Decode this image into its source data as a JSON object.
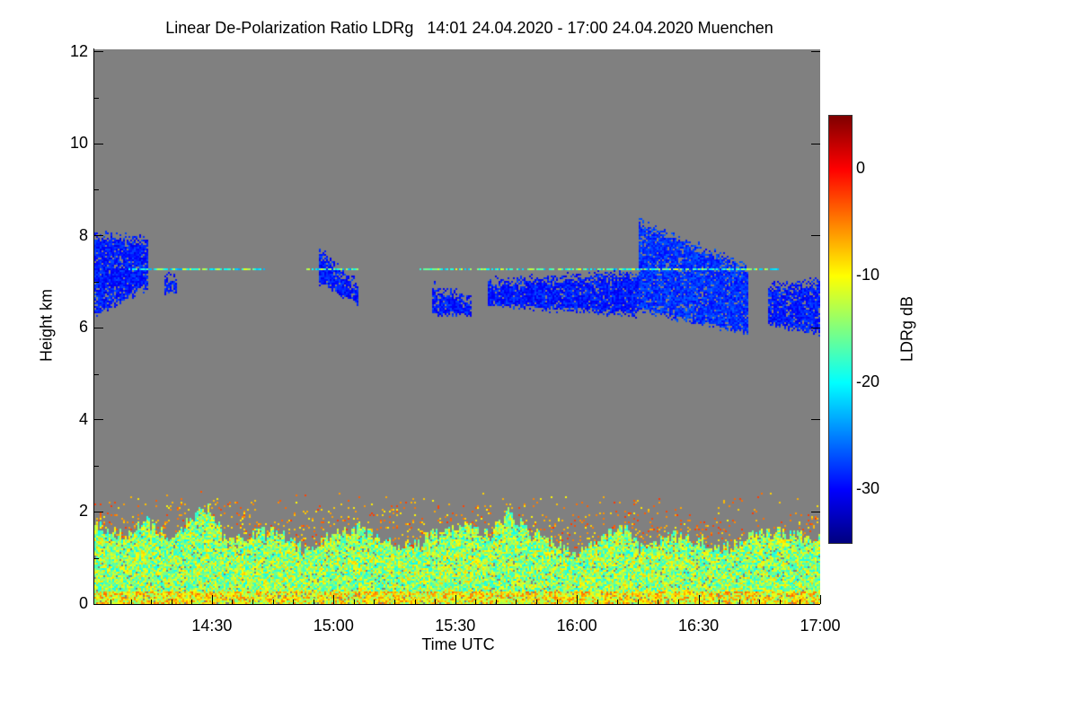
{
  "chart_data": {
    "type": "heatmap",
    "title": "Linear De-Polarization Ratio LDRg   14:01 24.04.2020 - 17:00 24.04.2020 Muenchen",
    "xlabel": "Time UTC",
    "ylabel": "Height km",
    "x_range_minutes_after_1400": [
      1,
      180
    ],
    "x_ticks": [
      {
        "label": "14:30",
        "min": 30
      },
      {
        "label": "15:00",
        "min": 60
      },
      {
        "label": "15:30",
        "min": 90
      },
      {
        "label": "16:00",
        "min": 120
      },
      {
        "label": "16:30",
        "min": 150
      },
      {
        "label": "17:00",
        "min": 180
      }
    ],
    "ylim": [
      0,
      12.05
    ],
    "y_ticks": [
      0,
      2,
      4,
      6,
      8,
      10,
      12
    ],
    "colorbar": {
      "label": "LDRg dB",
      "range": [
        -35,
        5
      ],
      "ticks": [
        0,
        -10,
        -20,
        -30
      ],
      "colormap": "jet"
    },
    "background_color": "#808080",
    "boundary_layer": {
      "description_values": "LDR mostly -20 to -8 dB below top height",
      "top_km_by_minute": [
        [
          1,
          1.7
        ],
        [
          8,
          1.5
        ],
        [
          14,
          1.8
        ],
        [
          20,
          1.4
        ],
        [
          26,
          2.0
        ],
        [
          29,
          2.1
        ],
        [
          34,
          1.3
        ],
        [
          40,
          1.5
        ],
        [
          46,
          1.6
        ],
        [
          52,
          1.2
        ],
        [
          60,
          1.5
        ],
        [
          66,
          1.7
        ],
        [
          72,
          1.4
        ],
        [
          80,
          1.3
        ],
        [
          86,
          1.6
        ],
        [
          92,
          1.8
        ],
        [
          98,
          1.5
        ],
        [
          103,
          2.0
        ],
        [
          108,
          1.6
        ],
        [
          114,
          1.3
        ],
        [
          120,
          1.1
        ],
        [
          126,
          1.4
        ],
        [
          131,
          1.7
        ],
        [
          136,
          1.2
        ],
        [
          142,
          1.5
        ],
        [
          150,
          1.4
        ],
        [
          156,
          1.2
        ],
        [
          162,
          1.5
        ],
        [
          170,
          1.6
        ],
        [
          180,
          1.4
        ]
      ]
    },
    "cirrus": [
      {
        "t": [
          1,
          14
        ],
        "base_km": [
          6.3,
          6.9
        ],
        "top_km": [
          8.0,
          7.9
        ],
        "ldr_db": -29
      },
      {
        "t": [
          18,
          21
        ],
        "base_km": [
          6.8,
          6.8
        ],
        "top_km": [
          7.1,
          7.1
        ],
        "ldr_db": -29
      },
      {
        "t": [
          56,
          66
        ],
        "base_km": [
          7.0,
          6.5
        ],
        "top_km": [
          7.7,
          6.9
        ],
        "ldr_db": -29
      },
      {
        "t": [
          84,
          94
        ],
        "base_km": [
          6.3,
          6.3
        ],
        "top_km": [
          6.9,
          6.6
        ],
        "ldr_db": -29
      },
      {
        "t": [
          98,
          135
        ],
        "base_km": [
          6.5,
          6.3
        ],
        "top_km": [
          7.0,
          7.2
        ],
        "ldr_db": -29
      },
      {
        "t": [
          135,
          162
        ],
        "base_km": [
          6.4,
          5.9
        ],
        "top_km": [
          8.3,
          7.3
        ],
        "ldr_db": -28
      },
      {
        "t": [
          167,
          180
        ],
        "base_km": [
          6.1,
          5.9
        ],
        "top_km": [
          6.9,
          7.0
        ],
        "ldr_db": -29
      }
    ],
    "thin_layer": {
      "height_km": 7.3,
      "segments": [
        [
          9,
          43
        ],
        [
          53,
          66
        ],
        [
          80,
          170
        ]
      ],
      "ldr_db_range": [
        -24,
        -10
      ]
    }
  }
}
